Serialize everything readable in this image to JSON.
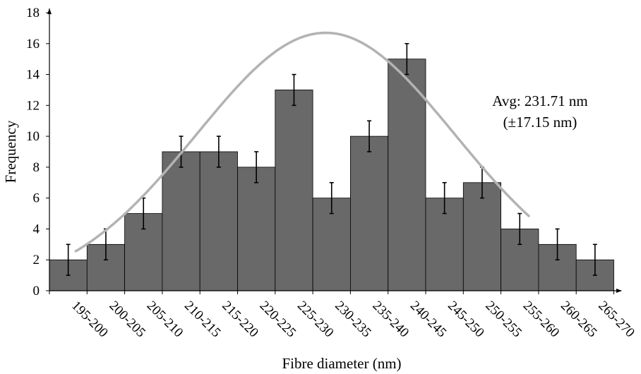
{
  "chart_data": {
    "type": "bar",
    "xlabel": "Fibre diameter (nm)",
    "ylabel": "Frequency",
    "categories": [
      "195-200",
      "200-205",
      "205-210",
      "210-215",
      "215-220",
      "220-225",
      "225-230",
      "230-235",
      "235-240",
      "240-245",
      "245-250",
      "250-255",
      "255-260",
      "260-265",
      "265-270"
    ],
    "values": [
      2,
      3,
      5,
      9,
      9,
      8,
      13,
      6,
      10,
      15,
      6,
      7,
      4,
      3,
      2
    ],
    "error": [
      1,
      1,
      1,
      1,
      1,
      1,
      1,
      1,
      1,
      1,
      1,
      1,
      1,
      1,
      1
    ],
    "ylim": [
      0,
      18
    ],
    "yticks": [
      0,
      2,
      4,
      6,
      8,
      10,
      12,
      14,
      16,
      18
    ],
    "bar_color": "#696969",
    "curve_color": "#b3b3b3",
    "fit_curve": {
      "type": "normal",
      "mean": 231.71,
      "sd": 17.15,
      "peak": 16.7,
      "x_range": [
        198.5,
        258.7
      ]
    },
    "annotation": {
      "line1": "Avg: 231.71 nm",
      "line2": "(±17.15 nm)"
    },
    "grid": false,
    "legend": "none"
  }
}
